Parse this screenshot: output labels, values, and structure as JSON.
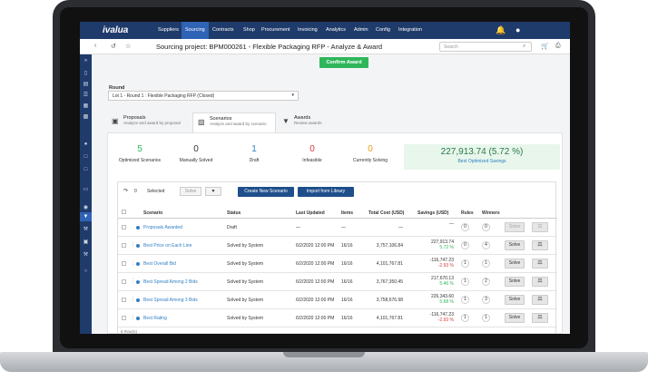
{
  "brand": {
    "logo": "ivalua"
  },
  "nav": [
    "Suppliers",
    "Sourcing",
    "Contracts",
    "Shop",
    "Procurement",
    "Invoicing",
    "Analytics",
    "Admin",
    "Config",
    "Integration"
  ],
  "nav_active": "Sourcing",
  "page": {
    "title": "Sourcing project: BPM000261 - Flexible Packaging RFP - Analyze & Award",
    "search_placeholder": "Search"
  },
  "confirm_award": "Confirm Award",
  "round": {
    "label": "Round",
    "value": "Lot 1 - Round 1 : Flexible Packaging RFP (Closed)"
  },
  "tabs": [
    {
      "title": "Proposals",
      "subtitle": "Analyze and award by proposal"
    },
    {
      "title": "Scenarios",
      "subtitle": "Analyze and award by scenario"
    },
    {
      "title": "Awards",
      "subtitle": "Review awards"
    }
  ],
  "stats": [
    {
      "value": "5",
      "label": "Optimized Scenarios",
      "color": "#2eb75a"
    },
    {
      "value": "0",
      "label": "Manually Solved",
      "color": "#333333"
    },
    {
      "value": "1",
      "label": "Draft",
      "color": "#2f7fc4"
    },
    {
      "value": "0",
      "label": "Infeasible",
      "color": "#d93b3b"
    },
    {
      "value": "0",
      "label": "Currently Solving",
      "color": "#e8a21a"
    }
  ],
  "best_savings": {
    "value": "227,913.74",
    "pct": "(5.72 %)",
    "label": "Best Optimized Savings"
  },
  "toolbar": {
    "selected_count": "0",
    "selected_label": "Selected",
    "solve": "Solve",
    "create": "Create New Scenario",
    "import": "Import from Library"
  },
  "columns": [
    "Scenario",
    "Status",
    "Last Updated",
    "Items",
    "Total Cost (USD)",
    "Savings (USD)",
    "Rules",
    "Winners"
  ],
  "rows": [
    {
      "name": "Proposals Awarded",
      "status": "Draft",
      "updated": "—",
      "items": "—",
      "cost": "—",
      "sav1": "—",
      "sav2": "",
      "sav_neg": false,
      "rules": "0",
      "winners": "0"
    },
    {
      "name": "Best Price on Each Line",
      "status": "Solved by System",
      "updated": "6/2/2020 12:00 PM",
      "items": "16/16",
      "cost": "3,757,106.84",
      "sav1": "227,913.74",
      "sav2": "5.72 %",
      "sav_neg": false,
      "rules": "0",
      "winners": "4"
    },
    {
      "name": "Best Overall Bid",
      "status": "Solved by System",
      "updated": "6/2/2020 12:00 PM",
      "items": "16/16",
      "cost": "4,101,767.81",
      "sav1": "-116,747.23",
      "sav2": "-2.93 %",
      "sav_neg": true,
      "rules": "1",
      "winners": "1"
    },
    {
      "name": "Best Spread Among 2 Bids",
      "status": "Solved by System",
      "updated": "6/2/2020 12:00 PM",
      "items": "16/16",
      "cost": "3,767,350.45",
      "sav1": "217,670.13",
      "sav2": "5.46 %",
      "sav_neg": false,
      "rules": "1",
      "winners": "2"
    },
    {
      "name": "Best Spread Among 3 Bids",
      "status": "Solved by System",
      "updated": "6/2/2020 12:00 PM",
      "items": "16/16",
      "cost": "3,758,676.98",
      "sav1": "226,343.60",
      "sav2": "5.68 %",
      "sav_neg": false,
      "rules": "1",
      "winners": "3"
    },
    {
      "name": "Best Rating",
      "status": "Solved by System",
      "updated": "6/2/2020 12:00 PM",
      "items": "16/16",
      "cost": "4,101,767.81",
      "sav1": "-116,747.23",
      "sav2": "-2.93 %",
      "sav_neg": true,
      "rules": "1",
      "winners": "1"
    }
  ],
  "row_action_solve": "Solve",
  "footer": "6 Row(s)"
}
